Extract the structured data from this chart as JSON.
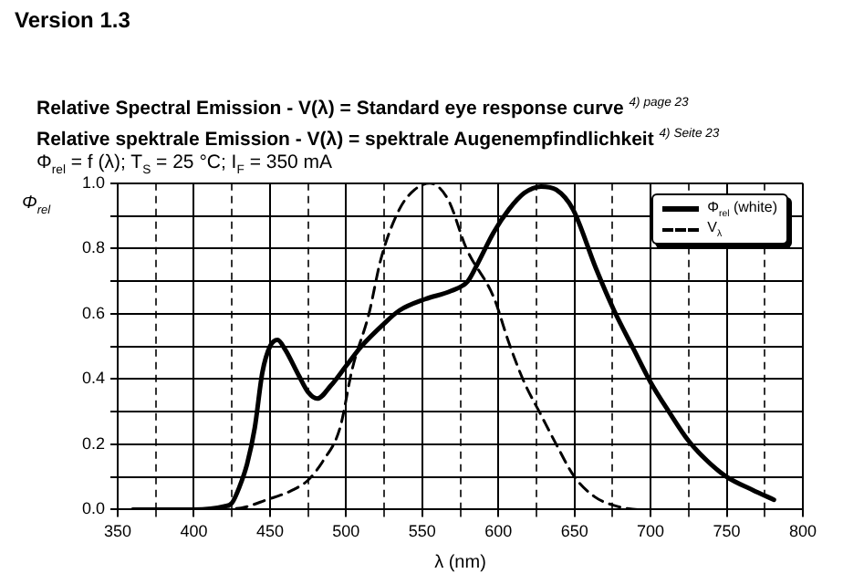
{
  "chart_data": {
    "type": "line",
    "title": "Relative Spectral Emission - V(λ) = Standard eye response curve $^{4) page 23}$",
    "subtitle": "Relative spektrale Emission - V(λ) = spektrale Augenempfindlichkeit $^{4) Seite 23}$",
    "annotations": [
      "Version 1.3",
      "Φ$_{rel}$ = f (λ); T$_{S}$ = 25 °C; I$_{F}$ = 350 mA"
    ],
    "xlabel": "λ (nm)",
    "ylabel": "Φ$_{rel}$",
    "series": [
      {
        "name": "Φ$_{rel}$ (white)",
        "color": "#000000",
        "line_style": "solid",
        "x": [
          360,
          400,
          420,
          425,
          430,
          435,
          440,
          445,
          450,
          455,
          460,
          469,
          475,
          481,
          490,
          500,
          510,
          525,
          535,
          552,
          569,
          580,
          586,
          597,
          607,
          617,
          628,
          638,
          649,
          664,
          676,
          689,
          700,
          712,
          725,
          737,
          750,
          767,
          781
        ],
        "values": [
          0.0,
          0.0,
          0.01,
          0.02,
          0.07,
          0.14,
          0.25,
          0.42,
          0.5,
          0.52,
          0.49,
          0.41,
          0.36,
          0.34,
          0.38,
          0.44,
          0.5,
          0.57,
          0.61,
          0.645,
          0.67,
          0.7,
          0.75,
          0.85,
          0.92,
          0.97,
          0.99,
          0.98,
          0.92,
          0.74,
          0.61,
          0.49,
          0.39,
          0.3,
          0.21,
          0.15,
          0.1,
          0.06,
          0.03
        ]
      },
      {
        "name": "V$_{λ}$",
        "color": "#000000",
        "line_style": "dashed",
        "x": [
          380,
          410,
          431,
          448,
          465,
          475,
          485,
          496,
          504,
          515,
          523,
          535,
          545,
          555,
          567,
          579,
          597,
          607,
          617,
          628,
          638,
          650,
          663,
          675,
          692,
          700
        ],
        "values": [
          0.0,
          0.0,
          0.005,
          0.03,
          0.06,
          0.09,
          0.15,
          0.25,
          0.43,
          0.6,
          0.77,
          0.92,
          0.98,
          1.0,
          0.95,
          0.8,
          0.65,
          0.51,
          0.39,
          0.29,
          0.2,
          0.1,
          0.04,
          0.014,
          0.0,
          0.0
        ]
      }
    ],
    "xlim": [
      350,
      800
    ],
    "xticks": [
      350,
      {
        "value": 375,
        "label": null
      },
      400,
      {
        "value": 425,
        "label": null
      },
      450,
      {
        "value": 475,
        "label": null
      },
      500,
      {
        "value": 525,
        "label": null
      },
      550,
      {
        "value": 575,
        "label": null
      },
      600,
      {
        "value": 625,
        "label": null
      },
      650,
      {
        "value": 675,
        "label": null
      },
      700,
      {
        "value": 725,
        "label": null
      },
      750,
      {
        "value": 775,
        "label": null
      },
      800
    ],
    "ylim": [
      0,
      1
    ],
    "yticks": [
      {
        "value": 0,
        "label": "0.0"
      },
      {
        "value": 0.1,
        "label": null
      },
      {
        "value": 0.2,
        "label": "0.2"
      },
      {
        "value": 0.3,
        "label": null
      },
      {
        "value": 0.4,
        "label": "0.4"
      },
      {
        "value": 0.5,
        "label": null
      },
      {
        "value": 0.6,
        "label": "0.6"
      },
      {
        "value": 0.7,
        "label": null
      },
      {
        "value": 0.8,
        "label": "0.8"
      },
      {
        "value": 0.9,
        "label": null
      },
      {
        "value": 1,
        "label": "1.0"
      }
    ],
    "grid": true,
    "legend": "top right",
    "marker": "none"
  }
}
